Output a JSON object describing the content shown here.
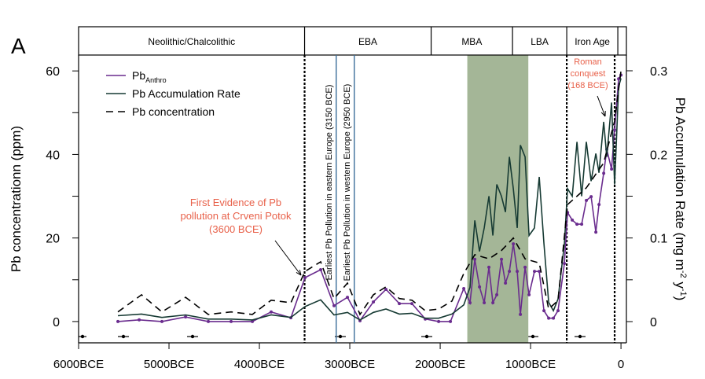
{
  "chart_data": {
    "type": "line",
    "panel_label": "A",
    "xlim": [
      -6000,
      60
    ],
    "xticks": [
      {
        "value": -6000,
        "label": "6000BCE"
      },
      {
        "value": -5000,
        "label": "5000BCE"
      },
      {
        "value": -4000,
        "label": "4000BCE"
      },
      {
        "value": -3000,
        "label": "3000BCE"
      },
      {
        "value": -2000,
        "label": "2000BCE"
      },
      {
        "value": -1000,
        "label": "1000BCE"
      },
      0
    ],
    "ylim": [
      -5.1,
      63.8
    ],
    "yticks": [
      0,
      20,
      40,
      60
    ],
    "yminor": [
      10,
      30,
      50
    ],
    "y2lim": [
      -0.0254,
      0.3188
    ],
    "y2ticks": [
      0,
      0.1,
      0.2,
      0.3
    ],
    "y2minor": [
      0.05,
      0.15,
      0.25
    ],
    "ylabel": "Pb concentrationn (ppm)",
    "y2label": [
      "Pb Accumulation Rate (mg m",
      "-2",
      " y",
      "-1",
      ")"
    ],
    "periods": [
      {
        "label": "Neolithic/Chalcolithic",
        "start": -6000,
        "end": -3500
      },
      {
        "label": "EBA",
        "start": -3500,
        "end": -2100
      },
      {
        "label": "MBA",
        "start": -2100,
        "end": -1200
      },
      {
        "label": "LBA",
        "start": -1200,
        "end": -600
      },
      {
        "label": "Iron Age",
        "start": -600,
        "end": -35
      }
    ],
    "spans": [
      {
        "x0": -1700,
        "x1": -1025,
        "color": "#a4b697"
      }
    ],
    "vlines": [
      {
        "x": -3500,
        "color": "#000000",
        "dash": "dotted"
      },
      {
        "x": -600,
        "color": "#000000",
        "dash": "dotted"
      },
      {
        "x": -70,
        "color": "#000000",
        "dash": "dotted"
      },
      {
        "x": -3150,
        "color": "#3b6e9a",
        "dash": "solid",
        "label": "Earliest Pb Pollution in eastern Europe (3150 BCE)"
      },
      {
        "x": -2950,
        "color": "#3b6e9a",
        "dash": "solid",
        "label": "Earliest Pb Pollution in western Europe (2950 BCE)"
      }
    ],
    "annotations": [
      {
        "lines": [
          "First Evidence of Pb",
          "pollution at Crveni Potok",
          "(3600 BCE)"
        ],
        "color": "#e8614a"
      },
      {
        "lines": [
          "Roman",
          "conquest",
          "(168 BCE)"
        ],
        "color": "#e8614a"
      }
    ],
    "series": [
      {
        "name": "Pb",
        "name_subscript": "Anthro",
        "color": "#6a2c8e",
        "dash": "solid",
        "markers": true,
        "x": [
          -5565,
          -5330,
          -5078,
          -4817,
          -4565,
          -4313,
          -4078,
          -3870,
          -3652,
          -3496,
          -3322,
          -3174,
          -3026,
          -2887,
          -2739,
          -2600,
          -2452,
          -2313,
          -2165,
          -2017,
          -1887,
          -1739,
          -1670,
          -1617,
          -1565,
          -1513,
          -1461,
          -1417,
          -1374,
          -1322,
          -1278,
          -1235,
          -1191,
          -1148,
          -1113,
          -1061,
          -1017,
          -957,
          -904,
          -852,
          -800,
          -748,
          -696,
          -626,
          -591,
          -539,
          -487,
          -435,
          -383,
          -330,
          -278,
          -243,
          -191,
          -157,
          -104,
          -70,
          -26,
          0
        ],
        "values": [
          0,
          0.4,
          0,
          1.1,
          0,
          0,
          0,
          2.3,
          0.9,
          10.5,
          12.4,
          3.8,
          5.8,
          0.2,
          4.7,
          7.7,
          4.3,
          4.3,
          0.6,
          0,
          0,
          7.9,
          4.5,
          14.9,
          8.3,
          4.5,
          13,
          4.5,
          6.4,
          14.9,
          9.2,
          12,
          18.6,
          12,
          1.7,
          13,
          6.4,
          12,
          12,
          2.6,
          0.8,
          0.8,
          2.6,
          13.9,
          26.1,
          24.3,
          23.3,
          23.3,
          29,
          29.9,
          21.4,
          28,
          35.5,
          41.2,
          36.5,
          45.9,
          58.1,
          59
        ]
      },
      {
        "name": "Pb Accumulation Rate",
        "color": "#163a33",
        "dash": "solid",
        "axis": "y2",
        "x": [
          -5565,
          -5304,
          -5078,
          -4817,
          -4565,
          -4313,
          -4078,
          -3870,
          -3652,
          -3496,
          -3322,
          -3174,
          -3026,
          -2887,
          -2739,
          -2600,
          -2452,
          -2313,
          -2165,
          -2017,
          -1870,
          -1739,
          -1670,
          -1617,
          -1565,
          -1513,
          -1461,
          -1417,
          -1374,
          -1322,
          -1278,
          -1235,
          -1191,
          -1148,
          -1113,
          -1061,
          -1017,
          -957,
          -904,
          -852,
          -800,
          -748,
          -696,
          -626,
          -591,
          -539,
          -487,
          -435,
          -383,
          -330,
          -278,
          -243,
          -191,
          -157,
          -104,
          -70,
          -26,
          0
        ],
        "values": [
          0.007,
          0.009,
          0.005,
          0.008,
          0.003,
          0.003,
          0.002,
          0.008,
          0.005,
          0.018,
          0.026,
          0.008,
          0.011,
          0.002,
          0.011,
          0.015,
          0.009,
          0.01,
          0.004,
          0.004,
          0.009,
          0.02,
          0.041,
          0.121,
          0.084,
          0.112,
          0.15,
          0.103,
          0.164,
          0.15,
          0.131,
          0.197,
          0.159,
          0.112,
          0.211,
          0.197,
          0.103,
          0.112,
          0.173,
          0.093,
          0.023,
          0.013,
          0.027,
          0.093,
          0.159,
          0.15,
          0.215,
          0.15,
          0.215,
          0.168,
          0.201,
          0.178,
          0.239,
          0.197,
          0.262,
          0.164,
          0.281,
          0.291
        ]
      },
      {
        "name": "Pb concentration",
        "color": "#000000",
        "dash": "dashed",
        "x": [
          -5565,
          -5304,
          -5078,
          -4817,
          -4565,
          -4313,
          -4078,
          -3870,
          -3652,
          -3496,
          -3322,
          -3174,
          -3026,
          -2887,
          -2739,
          -2600,
          -2452,
          -2313,
          -2165,
          -2017,
          -1870,
          -1739,
          -1617,
          -1461,
          -1322,
          -1191,
          -1061,
          -904,
          -800,
          -696,
          -591,
          -383,
          -191,
          -70,
          0
        ],
        "values": [
          2.3,
          6.4,
          2.3,
          5.8,
          1.7,
          2.3,
          1.7,
          5.1,
          4.5,
          12,
          14.3,
          5.5,
          9.2,
          1.7,
          6.4,
          8.3,
          5.5,
          5.1,
          2.6,
          3,
          4.9,
          11.5,
          16,
          15,
          17,
          20,
          15,
          14,
          3,
          5,
          28,
          32,
          38,
          48,
          60
        ]
      }
    ]
  }
}
